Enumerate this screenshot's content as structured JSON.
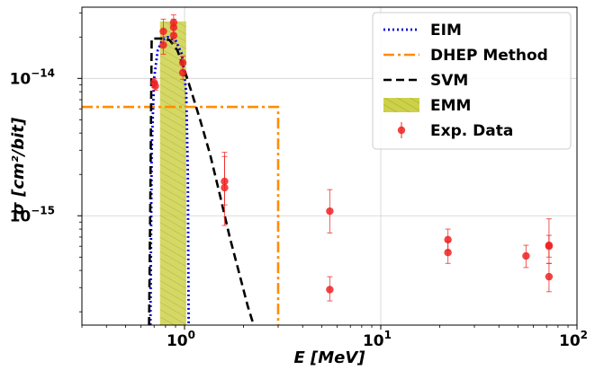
{
  "chart_data": {
    "type": "line",
    "title": "",
    "xlabel": "E [MeV]",
    "ylabel": "σ [cm²/bit]",
    "xscale": "log",
    "yscale": "log",
    "xlim": [
      0.3,
      100
    ],
    "ylim": [
      1.6e-16,
      3.3e-14
    ],
    "grid": true,
    "legend_position": "top-right",
    "x_ticks": [
      {
        "value": 1,
        "base": "10",
        "exp": "0"
      },
      {
        "value": 10,
        "base": "10",
        "exp": "1"
      },
      {
        "value": 100,
        "base": "10",
        "exp": "2"
      }
    ],
    "y_ticks": [
      {
        "value": 1e-15,
        "base": "10",
        "exp": "−15"
      },
      {
        "value": 1e-14,
        "base": "10",
        "exp": "−14"
      }
    ],
    "series": [
      {
        "name": "EIM",
        "kind": "line",
        "color": "#0000dd",
        "style": "dotted",
        "x": [
          0.67,
          0.68,
          0.7,
          0.73,
          0.77,
          0.82,
          0.9,
          0.97,
          1.02,
          1.04,
          1.05
        ],
        "y": [
          1.6e-16,
          3e-15,
          1e-14,
          1.6e-14,
          1.9e-14,
          2e-14,
          1.9e-14,
          1.5e-14,
          8e-15,
          2e-15,
          1.6e-16
        ]
      },
      {
        "name": "DHEP Method",
        "kind": "line",
        "color": "#ff8c00",
        "style": "dashdot",
        "x": [
          0.3,
          3.0,
          3.0
        ],
        "y": [
          6.2e-15,
          6.2e-15,
          1.6e-16
        ]
      },
      {
        "name": "SVM",
        "kind": "line",
        "color": "#000000",
        "style": "dashed",
        "x": [
          0.66,
          0.67,
          0.68,
          0.76,
          0.84,
          0.92,
          1.0,
          1.1,
          1.2,
          1.35,
          1.5,
          1.7,
          1.9,
          2.1,
          2.25
        ],
        "y": [
          1.6e-16,
          1.5e-15,
          1.95e-14,
          1.95e-14,
          1.9e-14,
          1.6e-14,
          1.15e-14,
          7.5e-15,
          5e-15,
          2.8e-15,
          1.5e-15,
          7e-16,
          3.8e-16,
          2.2e-16,
          1.6e-16
        ]
      },
      {
        "name": "EMM",
        "kind": "bar",
        "color": "#cdd14a",
        "hatch_color": "#a8ad2a",
        "x_range": [
          0.75,
          1.02
        ],
        "y_top": 2.6e-14
      },
      {
        "name": "Exp. Data",
        "kind": "errorbar",
        "color": "#ee2222",
        "points": [
          {
            "x": 0.7,
            "y": 9.3e-15,
            "lo": 8.6e-15,
            "hi": 1e-14
          },
          {
            "x": 0.71,
            "y": 8.8e-15,
            "lo": 8.2e-15,
            "hi": 9.4e-15
          },
          {
            "x": 0.78,
            "y": 2.2e-14,
            "lo": 1.9e-14,
            "hi": 2.7e-14
          },
          {
            "x": 0.78,
            "y": 1.75e-14,
            "lo": 1.5e-14,
            "hi": 2e-14
          },
          {
            "x": 0.88,
            "y": 2.55e-14,
            "lo": 2.1e-14,
            "hi": 2.9e-14
          },
          {
            "x": 0.88,
            "y": 2.35e-14,
            "lo": 2e-14,
            "hi": 2.7e-14
          },
          {
            "x": 0.88,
            "y": 2.05e-14,
            "lo": 1.8e-14,
            "hi": 2.4e-14
          },
          {
            "x": 0.98,
            "y": 1.3e-14,
            "lo": 1.15e-14,
            "hi": 1.45e-14
          },
          {
            "x": 0.98,
            "y": 1.1e-14,
            "lo": 9.8e-15,
            "hi": 1.3e-14
          },
          {
            "x": 1.6,
            "y": 1.78e-15,
            "lo": 1.2e-15,
            "hi": 2.9e-15
          },
          {
            "x": 1.6,
            "y": 1.6e-15,
            "lo": 8.5e-16,
            "hi": 2.7e-15
          },
          {
            "x": 5.5,
            "y": 1.08e-15,
            "lo": 7.5e-16,
            "hi": 1.55e-15
          },
          {
            "x": 5.5,
            "y": 2.9e-16,
            "lo": 2.4e-16,
            "hi": 3.6e-16
          },
          {
            "x": 22,
            "y": 6.7e-16,
            "lo": 5.6e-16,
            "hi": 8e-16
          },
          {
            "x": 22,
            "y": 5.4e-16,
            "lo": 4.5e-16,
            "hi": 6.5e-16
          },
          {
            "x": 55,
            "y": 5.1e-16,
            "lo": 4.2e-16,
            "hi": 6.1e-16
          },
          {
            "x": 72,
            "y": 6e-16,
            "lo": 4.5e-16,
            "hi": 9.5e-16
          },
          {
            "x": 72,
            "y": 6.1e-16,
            "lo": 5e-16,
            "hi": 7.2e-16
          },
          {
            "x": 72,
            "y": 3.6e-16,
            "lo": 2.8e-16,
            "hi": 4.5e-16
          }
        ]
      }
    ]
  }
}
